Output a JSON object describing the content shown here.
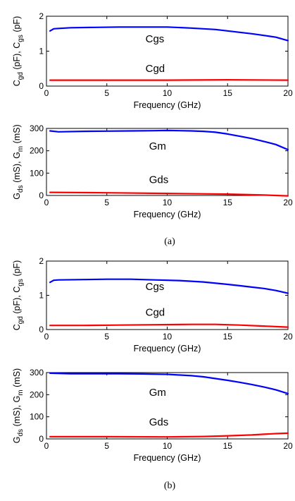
{
  "chart_data": [
    {
      "type": "line",
      "panel": "a-top",
      "xlabel": "Frequency (GHz)",
      "ylabel": {
        "parts": [
          [
            "C",
            ""
          ],
          [
            "gd",
            "sub"
          ],
          [
            " (pF), C",
            ""
          ],
          [
            "gs",
            "sub"
          ],
          [
            " (pF)",
            ""
          ]
        ]
      },
      "xlim": [
        0,
        20
      ],
      "ylim": [
        0,
        2
      ],
      "xticks": [
        "0",
        "5",
        "10",
        "15",
        "20"
      ],
      "yticks": [
        "0",
        "1",
        "2"
      ],
      "series": [
        {
          "name": "Cgs",
          "color": "#0000ff",
          "x": [
            0.3,
            0.6,
            1,
            2,
            4,
            6,
            8,
            10,
            12,
            14,
            15,
            16,
            17,
            18,
            19,
            20
          ],
          "y": [
            1.58,
            1.64,
            1.65,
            1.67,
            1.68,
            1.69,
            1.69,
            1.69,
            1.66,
            1.62,
            1.58,
            1.54,
            1.5,
            1.45,
            1.4,
            1.3
          ]
        },
        {
          "name": "Cgd",
          "color": "#ff0000",
          "x": [
            0.3,
            5,
            10,
            15,
            20
          ],
          "y": [
            0.17,
            0.17,
            0.17,
            0.18,
            0.17
          ]
        }
      ],
      "annotations": [
        {
          "text": "Cgs",
          "x": 8.2,
          "y": 1.25
        },
        {
          "text": "Cgd",
          "x": 8.2,
          "y": 0.4
        }
      ]
    },
    {
      "type": "line",
      "panel": "a-bottom",
      "xlabel": "Frequency (GHz)",
      "ylabel": {
        "parts": [
          [
            "G",
            ""
          ],
          [
            "ds",
            "sub"
          ],
          [
            " (mS), G",
            ""
          ],
          [
            "m",
            "sub"
          ],
          [
            " (mS)",
            ""
          ]
        ]
      },
      "xlim": [
        0,
        20
      ],
      "ylim": [
        0,
        300
      ],
      "xticks": [
        "0",
        "5",
        "10",
        "15",
        "20"
      ],
      "yticks": [
        "0",
        "100",
        "200",
        "300"
      ],
      "series": [
        {
          "name": "Gm",
          "color": "#0000ff",
          "x": [
            0.3,
            1,
            3,
            5,
            7,
            9,
            10,
            11,
            12,
            13,
            14,
            15,
            16,
            17,
            18,
            19,
            20
          ],
          "y": [
            289,
            285,
            287,
            288,
            289,
            290,
            291,
            290,
            289,
            287,
            283,
            275,
            265,
            255,
            242,
            228,
            205
          ]
        },
        {
          "name": "Gds",
          "color": "#ff0000",
          "x": [
            0.3,
            5,
            10,
            15,
            18,
            19,
            20
          ],
          "y": [
            14,
            12,
            9,
            6,
            2,
            0,
            -2
          ]
        }
      ],
      "annotations": [
        {
          "text": "Gm",
          "x": 8.5,
          "y": 205
        },
        {
          "text": "Gds",
          "x": 8.5,
          "y": 55
        }
      ]
    },
    {
      "type": "line",
      "panel": "b-top",
      "xlabel": "Frequency (GHz)",
      "ylabel": {
        "parts": [
          [
            "C",
            ""
          ],
          [
            "gd",
            "sub"
          ],
          [
            " (pF), C",
            ""
          ],
          [
            "gs",
            "sub"
          ],
          [
            " (pF)",
            ""
          ]
        ]
      },
      "xlim": [
        0,
        20
      ],
      "ylim": [
        0,
        2
      ],
      "xticks": [
        "0",
        "5",
        "10",
        "15",
        "20"
      ],
      "yticks": [
        "0",
        "1",
        "2"
      ],
      "series": [
        {
          "name": "Cgs",
          "color": "#0000ff",
          "x": [
            0.3,
            0.6,
            1,
            3,
            5,
            7,
            9,
            11,
            13,
            15,
            16,
            17,
            18,
            19,
            20
          ],
          "y": [
            1.38,
            1.44,
            1.45,
            1.46,
            1.47,
            1.47,
            1.45,
            1.43,
            1.39,
            1.32,
            1.28,
            1.24,
            1.2,
            1.14,
            1.06
          ]
        },
        {
          "name": "Cgd",
          "color": "#ff0000",
          "x": [
            0.3,
            3,
            6,
            9,
            12,
            14,
            16,
            18,
            20
          ],
          "y": [
            0.12,
            0.12,
            0.13,
            0.14,
            0.15,
            0.15,
            0.13,
            0.1,
            0.07
          ]
        }
      ],
      "annotations": [
        {
          "text": "Cgs",
          "x": 8.2,
          "y": 1.15
        },
        {
          "text": "Cgd",
          "x": 8.2,
          "y": 0.4
        }
      ]
    },
    {
      "type": "line",
      "panel": "b-bottom",
      "xlabel": "Frequency (GHz)",
      "ylabel": {
        "parts": [
          [
            "G",
            ""
          ],
          [
            "ds",
            "sub"
          ],
          [
            " (mS), G",
            ""
          ],
          [
            "m",
            "sub"
          ],
          [
            " (mS)",
            ""
          ]
        ]
      },
      "xlim": [
        0,
        20
      ],
      "ylim": [
        0,
        300
      ],
      "xticks": [
        "0",
        "5",
        "10",
        "15",
        "20"
      ],
      "yticks": [
        "0",
        "100",
        "200",
        "300"
      ],
      "series": [
        {
          "name": "Gm",
          "color": "#0000ff",
          "x": [
            0.3,
            2,
            4,
            6,
            8,
            10,
            12,
            13,
            14,
            15,
            16,
            17,
            18,
            19,
            20
          ],
          "y": [
            297,
            295,
            295,
            295,
            294,
            292,
            286,
            281,
            273,
            265,
            256,
            246,
            235,
            222,
            205
          ]
        },
        {
          "name": "Gds",
          "color": "#ff0000",
          "x": [
            0.3,
            5,
            10,
            13,
            15,
            17,
            18,
            19,
            20
          ],
          "y": [
            10,
            10,
            9,
            11,
            14,
            18,
            21,
            24,
            26
          ]
        }
      ],
      "annotations": [
        {
          "text": "Gm",
          "x": 8.5,
          "y": 195
        },
        {
          "text": "Gds",
          "x": 8.5,
          "y": 60
        }
      ]
    }
  ],
  "captions": [
    "(a)",
    "(b)"
  ]
}
